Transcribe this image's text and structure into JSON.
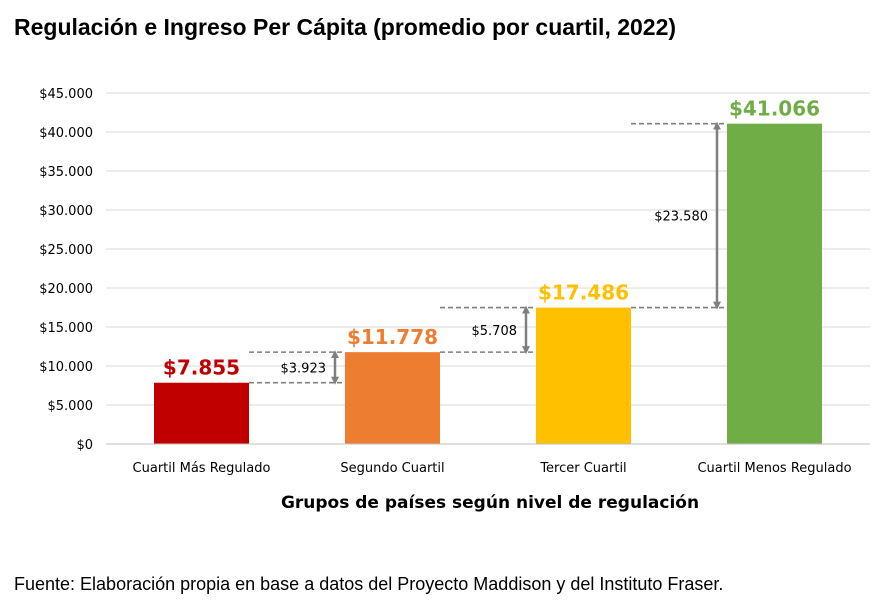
{
  "title": "Regulación e Ingreso Per Cápita (promedio por cuartil, 2022)",
  "source": "Fuente: Elaboración propia en base a datos del Proyecto Maddison y del Instituto Fraser.",
  "chart_data": {
    "type": "bar",
    "title": "Regulación e Ingreso Per Cápita (promedio por cuartil, 2022)",
    "xlabel": "Grupos de países según nivel de regulación",
    "ylabel": "",
    "ylim": [
      0,
      45000
    ],
    "grid": true,
    "legend": "none",
    "yticks": [
      0,
      5000,
      10000,
      15000,
      20000,
      25000,
      30000,
      35000,
      40000,
      45000
    ],
    "ytick_labels": [
      "$0",
      "$5.000",
      "$10.000",
      "$15.000",
      "$20.000",
      "$25.000",
      "$30.000",
      "$35.000",
      "$40.000",
      "$45.000"
    ],
    "categories": [
      "Cuartil Más Regulado",
      "Segundo Cuartil",
      "Tercer Cuartil",
      "Cuartil Menos Regulado"
    ],
    "values": [
      7855,
      11778,
      17486,
      41066
    ],
    "value_labels": [
      "$7.855",
      "$11.778",
      "$17.486",
      "$41.066"
    ],
    "colors": [
      "#c00000",
      "#ed7d31",
      "#ffc000",
      "#70ad47"
    ],
    "annotations": [
      {
        "from": 7855,
        "to": 11778,
        "label": "$3.923"
      },
      {
        "from": 11778,
        "to": 17486,
        "label": "$5.708"
      },
      {
        "from": 17486,
        "to": 41066,
        "label": "$23.580"
      }
    ]
  }
}
